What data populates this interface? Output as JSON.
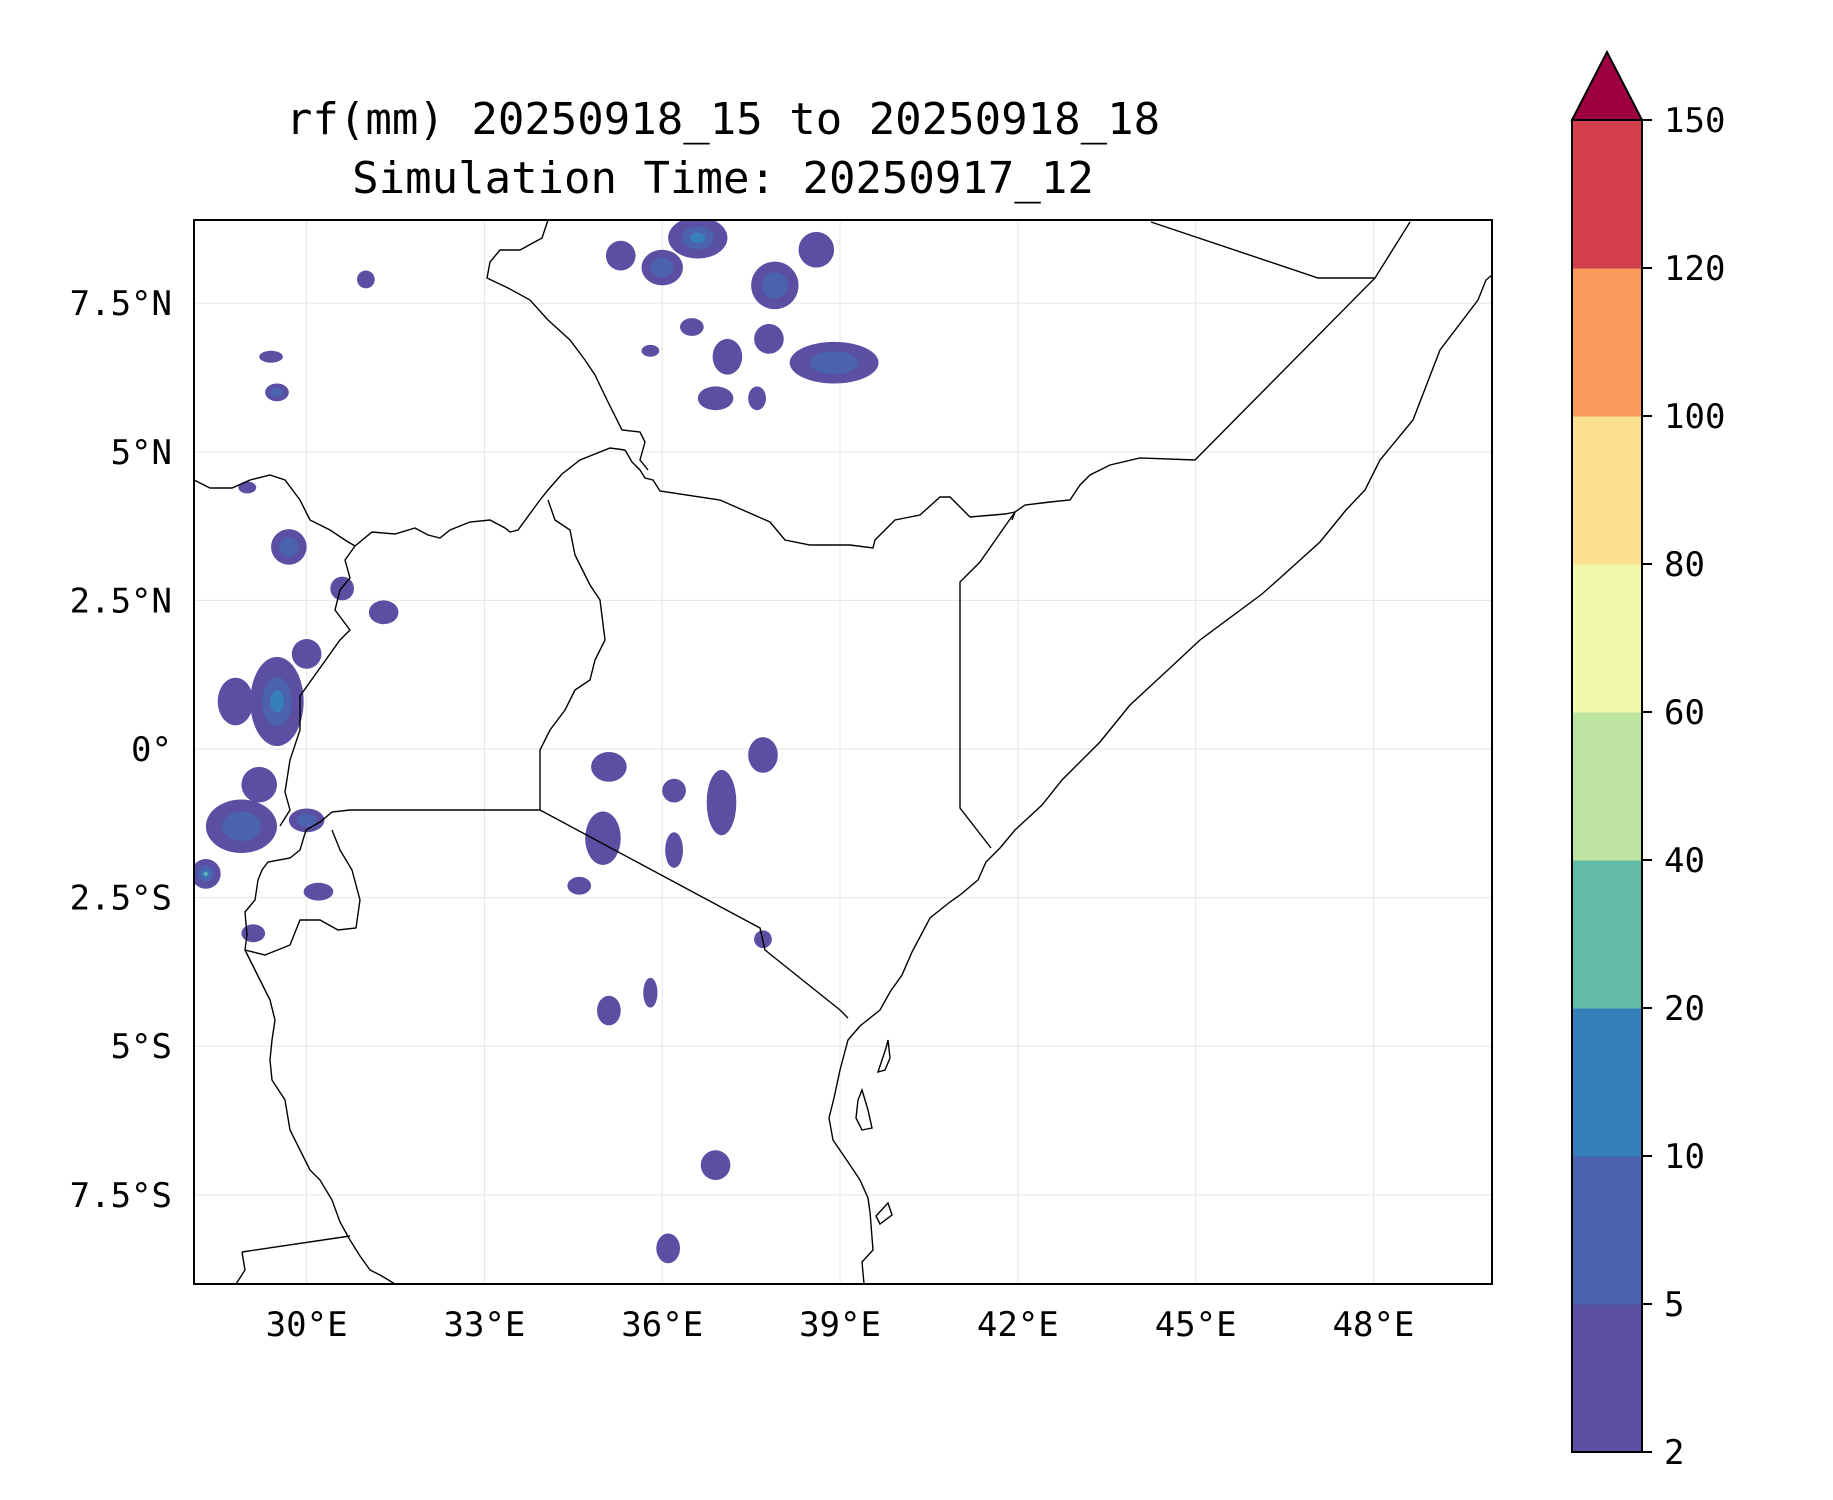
{
  "title_line1": "rf(mm) 20250918_15 to 20250918_18",
  "title_line2": "Simulation Time: 20250917_12",
  "map": {
    "lon_range": [
      28.1,
      50.0
    ],
    "lat_range": [
      -9.0,
      8.9
    ],
    "x_ticks": [
      {
        "lon": 30,
        "label": "30°E"
      },
      {
        "lon": 33,
        "label": "33°E"
      },
      {
        "lon": 36,
        "label": "36°E"
      },
      {
        "lon": 39,
        "label": "39°E"
      },
      {
        "lon": 42,
        "label": "42°E"
      },
      {
        "lon": 45,
        "label": "45°E"
      },
      {
        "lon": 48,
        "label": "48°E"
      }
    ],
    "y_ticks": [
      {
        "lat": 7.5,
        "label": "7.5°N"
      },
      {
        "lat": 5,
        "label": "5°N"
      },
      {
        "lat": 2.5,
        "label": "2.5°N"
      },
      {
        "lat": 0,
        "label": "0°"
      },
      {
        "lat": -2.5,
        "label": "2.5°S"
      },
      {
        "lat": -5,
        "label": "5°S"
      },
      {
        "lat": -7.5,
        "label": "7.5°S"
      }
    ]
  },
  "colorbar": {
    "levels": [
      "2",
      "5",
      "10",
      "20",
      "40",
      "60",
      "80",
      "100",
      "120",
      "150"
    ],
    "colors": [
      "#5a4fa2",
      "#4b63ae",
      "#377fbc",
      "#61bba7",
      "#bce4a0",
      "#f2f8ad",
      "#fbe08f",
      "#f99b5a",
      "#d43f4e"
    ],
    "extend_color": "#9e0142"
  },
  "rain_cells": [
    {
      "lon": 36.6,
      "lat": 8.6,
      "rx": 0.5,
      "ry": 0.35,
      "level": 2
    },
    {
      "lon": 36.0,
      "lat": 8.1,
      "rx": 0.35,
      "ry": 0.3,
      "level": 1
    },
    {
      "lon": 35.3,
      "lat": 8.3,
      "rx": 0.25,
      "ry": 0.25,
      "level": 0
    },
    {
      "lon": 37.9,
      "lat": 7.8,
      "rx": 0.4,
      "ry": 0.4,
      "level": 1
    },
    {
      "lon": 38.6,
      "lat": 8.4,
      "rx": 0.3,
      "ry": 0.3,
      "level": 0
    },
    {
      "lon": 38.9,
      "lat": 6.5,
      "rx": 0.75,
      "ry": 0.35,
      "level": 1
    },
    {
      "lon": 37.8,
      "lat": 6.9,
      "rx": 0.25,
      "ry": 0.25,
      "level": 0
    },
    {
      "lon": 37.1,
      "lat": 6.6,
      "rx": 0.25,
      "ry": 0.3,
      "level": 0
    },
    {
      "lon": 36.5,
      "lat": 7.1,
      "rx": 0.2,
      "ry": 0.15,
      "level": 0
    },
    {
      "lon": 36.9,
      "lat": 5.9,
      "rx": 0.3,
      "ry": 0.2,
      "level": 0
    },
    {
      "lon": 37.6,
      "lat": 5.9,
      "rx": 0.15,
      "ry": 0.2,
      "level": 0
    },
    {
      "lon": 35.8,
      "lat": 6.7,
      "rx": 0.15,
      "ry": 0.1,
      "level": 0
    },
    {
      "lon": 29.5,
      "lat": 6.0,
      "rx": 0.2,
      "ry": 0.15,
      "level": 1
    },
    {
      "lon": 29.4,
      "lat": 6.6,
      "rx": 0.2,
      "ry": 0.1,
      "level": 0
    },
    {
      "lon": 31.0,
      "lat": 7.9,
      "rx": 0.15,
      "ry": 0.15,
      "level": 0
    },
    {
      "lon": 29.0,
      "lat": 4.4,
      "rx": 0.15,
      "ry": 0.1,
      "level": 0
    },
    {
      "lon": 29.7,
      "lat": 3.4,
      "rx": 0.3,
      "ry": 0.3,
      "level": 1
    },
    {
      "lon": 30.6,
      "lat": 2.7,
      "rx": 0.2,
      "ry": 0.2,
      "level": 0
    },
    {
      "lon": 31.3,
      "lat": 2.3,
      "rx": 0.25,
      "ry": 0.2,
      "level": 0
    },
    {
      "lon": 29.5,
      "lat": 0.8,
      "rx": 0.45,
      "ry": 0.75,
      "level": 2
    },
    {
      "lon": 28.8,
      "lat": 0.8,
      "rx": 0.3,
      "ry": 0.4,
      "level": 0
    },
    {
      "lon": 30.0,
      "lat": 1.6,
      "rx": 0.25,
      "ry": 0.25,
      "level": 0
    },
    {
      "lon": 28.9,
      "lat": -1.3,
      "rx": 0.6,
      "ry": 0.45,
      "level": 1
    },
    {
      "lon": 29.2,
      "lat": -0.6,
      "rx": 0.3,
      "ry": 0.3,
      "level": 0
    },
    {
      "lon": 28.3,
      "lat": -2.1,
      "rx": 0.25,
      "ry": 0.25,
      "level": 3
    },
    {
      "lon": 30.0,
      "lat": -1.2,
      "rx": 0.3,
      "ry": 0.2,
      "level": 1
    },
    {
      "lon": 30.2,
      "lat": -2.4,
      "rx": 0.25,
      "ry": 0.15,
      "level": 0
    },
    {
      "lon": 29.1,
      "lat": -3.1,
      "rx": 0.2,
      "ry": 0.15,
      "level": 0
    },
    {
      "lon": 35.1,
      "lat": -0.3,
      "rx": 0.3,
      "ry": 0.25,
      "level": 0
    },
    {
      "lon": 35.0,
      "lat": -1.5,
      "rx": 0.3,
      "ry": 0.45,
      "level": 0
    },
    {
      "lon": 34.6,
      "lat": -2.3,
      "rx": 0.2,
      "ry": 0.15,
      "level": 0
    },
    {
      "lon": 36.2,
      "lat": -0.7,
      "rx": 0.2,
      "ry": 0.2,
      "level": 0
    },
    {
      "lon": 36.2,
      "lat": -1.7,
      "rx": 0.15,
      "ry": 0.3,
      "level": 0
    },
    {
      "lon": 37.0,
      "lat": -0.9,
      "rx": 0.25,
      "ry": 0.55,
      "level": 0
    },
    {
      "lon": 37.7,
      "lat": -0.1,
      "rx": 0.25,
      "ry": 0.3,
      "level": 0
    },
    {
      "lon": 37.7,
      "lat": -3.2,
      "rx": 0.15,
      "ry": 0.15,
      "level": 0
    },
    {
      "lon": 35.1,
      "lat": -4.4,
      "rx": 0.2,
      "ry": 0.25,
      "level": 0
    },
    {
      "lon": 35.8,
      "lat": -4.1,
      "rx": 0.12,
      "ry": 0.25,
      "level": 0
    },
    {
      "lon": 36.9,
      "lat": -7.0,
      "rx": 0.25,
      "ry": 0.25,
      "level": 0
    },
    {
      "lon": 36.1,
      "lat": -8.4,
      "rx": 0.2,
      "ry": 0.25,
      "level": 0
    }
  ]
}
